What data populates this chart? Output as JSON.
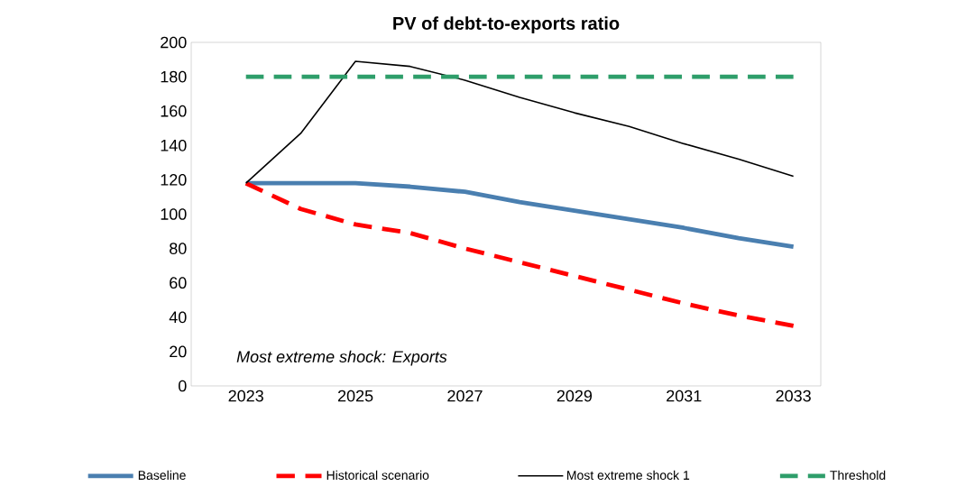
{
  "chart_data": {
    "type": "line",
    "title": "PV of debt-to-exports ratio",
    "x": [
      2023,
      2024,
      2025,
      2026,
      2027,
      2028,
      2029,
      2030,
      2031,
      2032,
      2033
    ],
    "series": [
      {
        "name": "Baseline",
        "color": "#4a7fb0",
        "line_style": "solid",
        "values": [
          118,
          118,
          118,
          116,
          113,
          107,
          102,
          97,
          92,
          86,
          81
        ]
      },
      {
        "name": "Historical scenario",
        "color": "#ff0000",
        "line_style": "dashed",
        "values": [
          118,
          103,
          94,
          89,
          80,
          72,
          64,
          56,
          48,
          41,
          35
        ]
      },
      {
        "name": "Most extreme shock 1",
        "color": "#000000",
        "line_style": "solid",
        "values": [
          118,
          147,
          189,
          186,
          178,
          168,
          159,
          151,
          141,
          132,
          122
        ]
      },
      {
        "name": "Threshold",
        "color": "#2e9e6a",
        "line_style": "dashed",
        "values": [
          180,
          180,
          180,
          180,
          180,
          180,
          180,
          180,
          180,
          180,
          180
        ]
      }
    ],
    "xlim": [
      2022,
      2033.5
    ],
    "xticks": [
      2023,
      2025,
      2027,
      2029,
      2031,
      2033
    ],
    "ylim": [
      0,
      200
    ],
    "yticks": [
      0,
      20,
      40,
      60,
      80,
      100,
      120,
      140,
      160,
      180,
      200
    ],
    "annotations": [
      "Most extreme shock: Exports"
    ],
    "grid": false,
    "legend": "bottom",
    "marker": "none"
  }
}
